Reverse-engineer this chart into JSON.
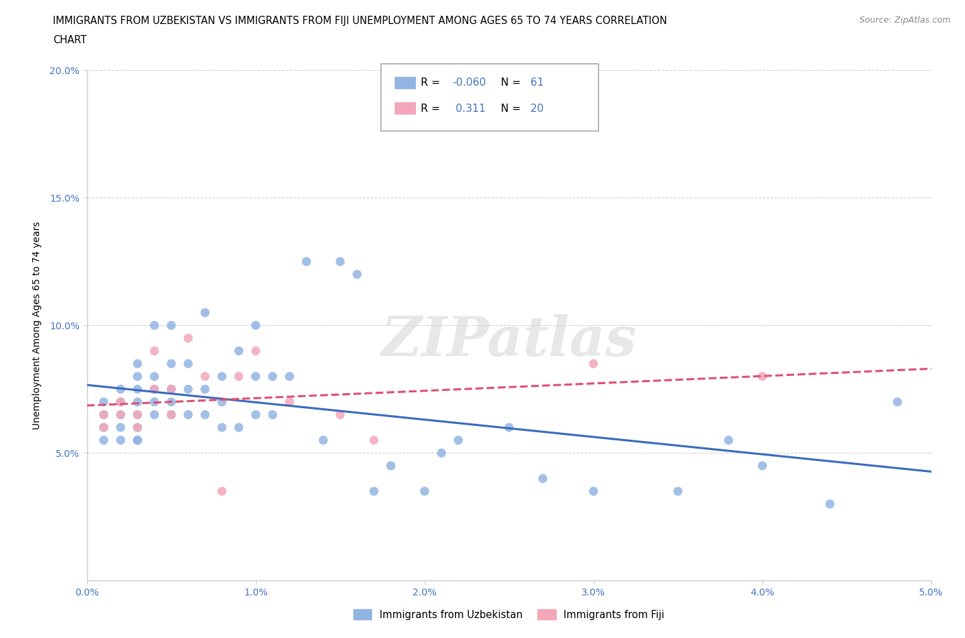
{
  "title_line1": "IMMIGRANTS FROM UZBEKISTAN VS IMMIGRANTS FROM FIJI UNEMPLOYMENT AMONG AGES 65 TO 74 YEARS CORRELATION",
  "title_line2": "CHART",
  "source_text": "Source: ZipAtlas.com",
  "ylabel": "Unemployment Among Ages 65 to 74 years",
  "x_min": 0.0,
  "x_max": 0.05,
  "y_min": 0.0,
  "y_max": 0.2,
  "x_tick_labels": [
    "0.0%",
    "1.0%",
    "2.0%",
    "3.0%",
    "4.0%",
    "5.0%"
  ],
  "x_tick_vals": [
    0.0,
    0.01,
    0.02,
    0.03,
    0.04,
    0.05
  ],
  "y_tick_labels": [
    "5.0%",
    "10.0%",
    "15.0%",
    "20.0%"
  ],
  "y_tick_vals": [
    0.05,
    0.1,
    0.15,
    0.2
  ],
  "uzbekistan_color": "#92b4e3",
  "fiji_color": "#f4a7b9",
  "uzbekistan_R": -0.06,
  "uzbekistan_N": 61,
  "fiji_R": 0.311,
  "fiji_N": 20,
  "legend_label_uzbekistan": "Immigrants from Uzbekistan",
  "legend_label_fiji": "Immigrants from Fiji",
  "watermark": "ZIPatlas",
  "uzbekistan_scatter_x": [
    0.001,
    0.001,
    0.001,
    0.001,
    0.002,
    0.002,
    0.002,
    0.002,
    0.002,
    0.003,
    0.003,
    0.003,
    0.003,
    0.003,
    0.003,
    0.003,
    0.003,
    0.004,
    0.004,
    0.004,
    0.004,
    0.004,
    0.005,
    0.005,
    0.005,
    0.005,
    0.005,
    0.006,
    0.006,
    0.006,
    0.007,
    0.007,
    0.007,
    0.008,
    0.008,
    0.008,
    0.009,
    0.009,
    0.01,
    0.01,
    0.01,
    0.011,
    0.011,
    0.012,
    0.013,
    0.014,
    0.015,
    0.016,
    0.017,
    0.018,
    0.02,
    0.021,
    0.022,
    0.025,
    0.027,
    0.03,
    0.035,
    0.038,
    0.04,
    0.044,
    0.048
  ],
  "uzbekistan_scatter_y": [
    0.055,
    0.06,
    0.065,
    0.07,
    0.06,
    0.065,
    0.07,
    0.075,
    0.055,
    0.055,
    0.06,
    0.065,
    0.07,
    0.075,
    0.08,
    0.085,
    0.055,
    0.065,
    0.07,
    0.075,
    0.08,
    0.1,
    0.065,
    0.07,
    0.075,
    0.085,
    0.1,
    0.065,
    0.075,
    0.085,
    0.065,
    0.075,
    0.105,
    0.06,
    0.07,
    0.08,
    0.06,
    0.09,
    0.065,
    0.08,
    0.1,
    0.065,
    0.08,
    0.08,
    0.125,
    0.055,
    0.125,
    0.12,
    0.035,
    0.045,
    0.035,
    0.05,
    0.055,
    0.06,
    0.04,
    0.035,
    0.035,
    0.055,
    0.045,
    0.03,
    0.07
  ],
  "fiji_scatter_x": [
    0.001,
    0.001,
    0.002,
    0.002,
    0.003,
    0.003,
    0.004,
    0.004,
    0.005,
    0.005,
    0.006,
    0.007,
    0.008,
    0.009,
    0.01,
    0.012,
    0.015,
    0.017,
    0.03,
    0.04
  ],
  "fiji_scatter_y": [
    0.06,
    0.065,
    0.065,
    0.07,
    0.06,
    0.065,
    0.075,
    0.09,
    0.075,
    0.065,
    0.095,
    0.08,
    0.035,
    0.08,
    0.09,
    0.07,
    0.065,
    0.055,
    0.085,
    0.08
  ],
  "background_color": "#ffffff",
  "grid_color": "#d0d0d0",
  "uzbekistan_line_color": "#3a6bbf",
  "fiji_line_color": "#e05070"
}
